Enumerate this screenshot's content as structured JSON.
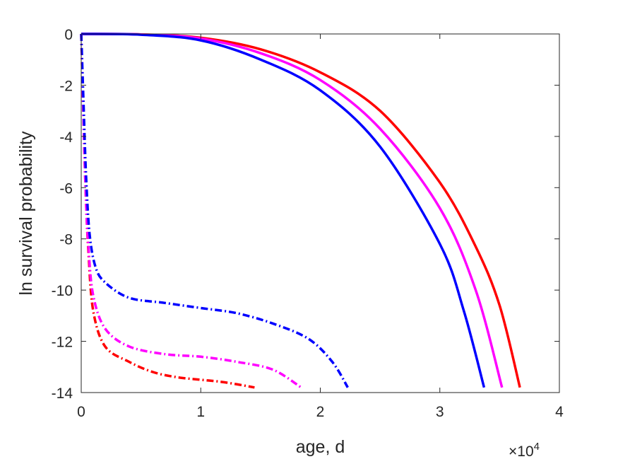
{
  "chart_data": {
    "type": "line",
    "title": "",
    "xlabel": "age, d",
    "ylabel": "ln survival probability",
    "x_exponent_label": "×10",
    "x_exponent_power": "4",
    "xlim": [
      0,
      40000
    ],
    "ylim": [
      -14,
      0
    ],
    "xticks": [
      0,
      10000,
      20000,
      30000,
      40000
    ],
    "xtick_labels": [
      "0",
      "1",
      "2",
      "3",
      "4"
    ],
    "yticks": [
      0,
      -2,
      -4,
      -6,
      -8,
      -10,
      -12,
      -14
    ],
    "ytick_labels": [
      "0",
      "-2",
      "-4",
      "-6",
      "-8",
      "-10",
      "-12",
      "-14"
    ],
    "grid": false,
    "series": [
      {
        "color": "#ff0000",
        "style": "solid",
        "x": [
          0,
          5000,
          10000,
          15000,
          20000,
          25000,
          30000,
          33000,
          35000,
          36700
        ],
        "y": [
          0,
          -0.02,
          -0.15,
          -0.6,
          -1.5,
          -3.0,
          -5.8,
          -8.3,
          -10.6,
          -13.8
        ]
      },
      {
        "color": "#ff00ff",
        "style": "solid",
        "x": [
          0,
          5000,
          10000,
          15000,
          20000,
          25000,
          30000,
          33000,
          35200
        ],
        "y": [
          0,
          -0.02,
          -0.18,
          -0.75,
          -1.8,
          -3.7,
          -6.8,
          -10.0,
          -13.8
        ]
      },
      {
        "color": "#0000ff",
        "style": "solid",
        "x": [
          0,
          5000,
          10000,
          15000,
          20000,
          25000,
          30000,
          32000,
          33700
        ],
        "y": [
          0,
          -0.03,
          -0.25,
          -1.0,
          -2.2,
          -4.4,
          -8.2,
          -10.8,
          -13.8
        ]
      },
      {
        "color": "#ff0000",
        "style": "dashdot",
        "x": [
          0,
          200,
          400,
          600,
          1000,
          2000,
          4000,
          6000,
          8000,
          10000,
          12000,
          14500
        ],
        "y": [
          0,
          -3.5,
          -6.5,
          -8.5,
          -10.8,
          -12.2,
          -12.8,
          -13.2,
          -13.4,
          -13.5,
          -13.6,
          -13.8
        ]
      },
      {
        "color": "#ff00ff",
        "style": "dashdot",
        "x": [
          0,
          200,
          400,
          600,
          1000,
          2000,
          4000,
          7000,
          10000,
          13000,
          16000,
          18400
        ],
        "y": [
          0,
          -3.5,
          -6.5,
          -8.3,
          -10.2,
          -11.5,
          -12.2,
          -12.5,
          -12.6,
          -12.8,
          -13.1,
          -13.8
        ]
      },
      {
        "color": "#0000ff",
        "style": "dashdot",
        "x": [
          0,
          200,
          400,
          700,
          1200,
          2000,
          4000,
          7000,
          10000,
          13000,
          16000,
          19000,
          21000,
          22300
        ],
        "y": [
          0,
          -2.8,
          -5.5,
          -7.8,
          -9.1,
          -9.7,
          -10.3,
          -10.5,
          -10.7,
          -10.9,
          -11.3,
          -11.9,
          -12.8,
          -13.8
        ]
      }
    ]
  }
}
